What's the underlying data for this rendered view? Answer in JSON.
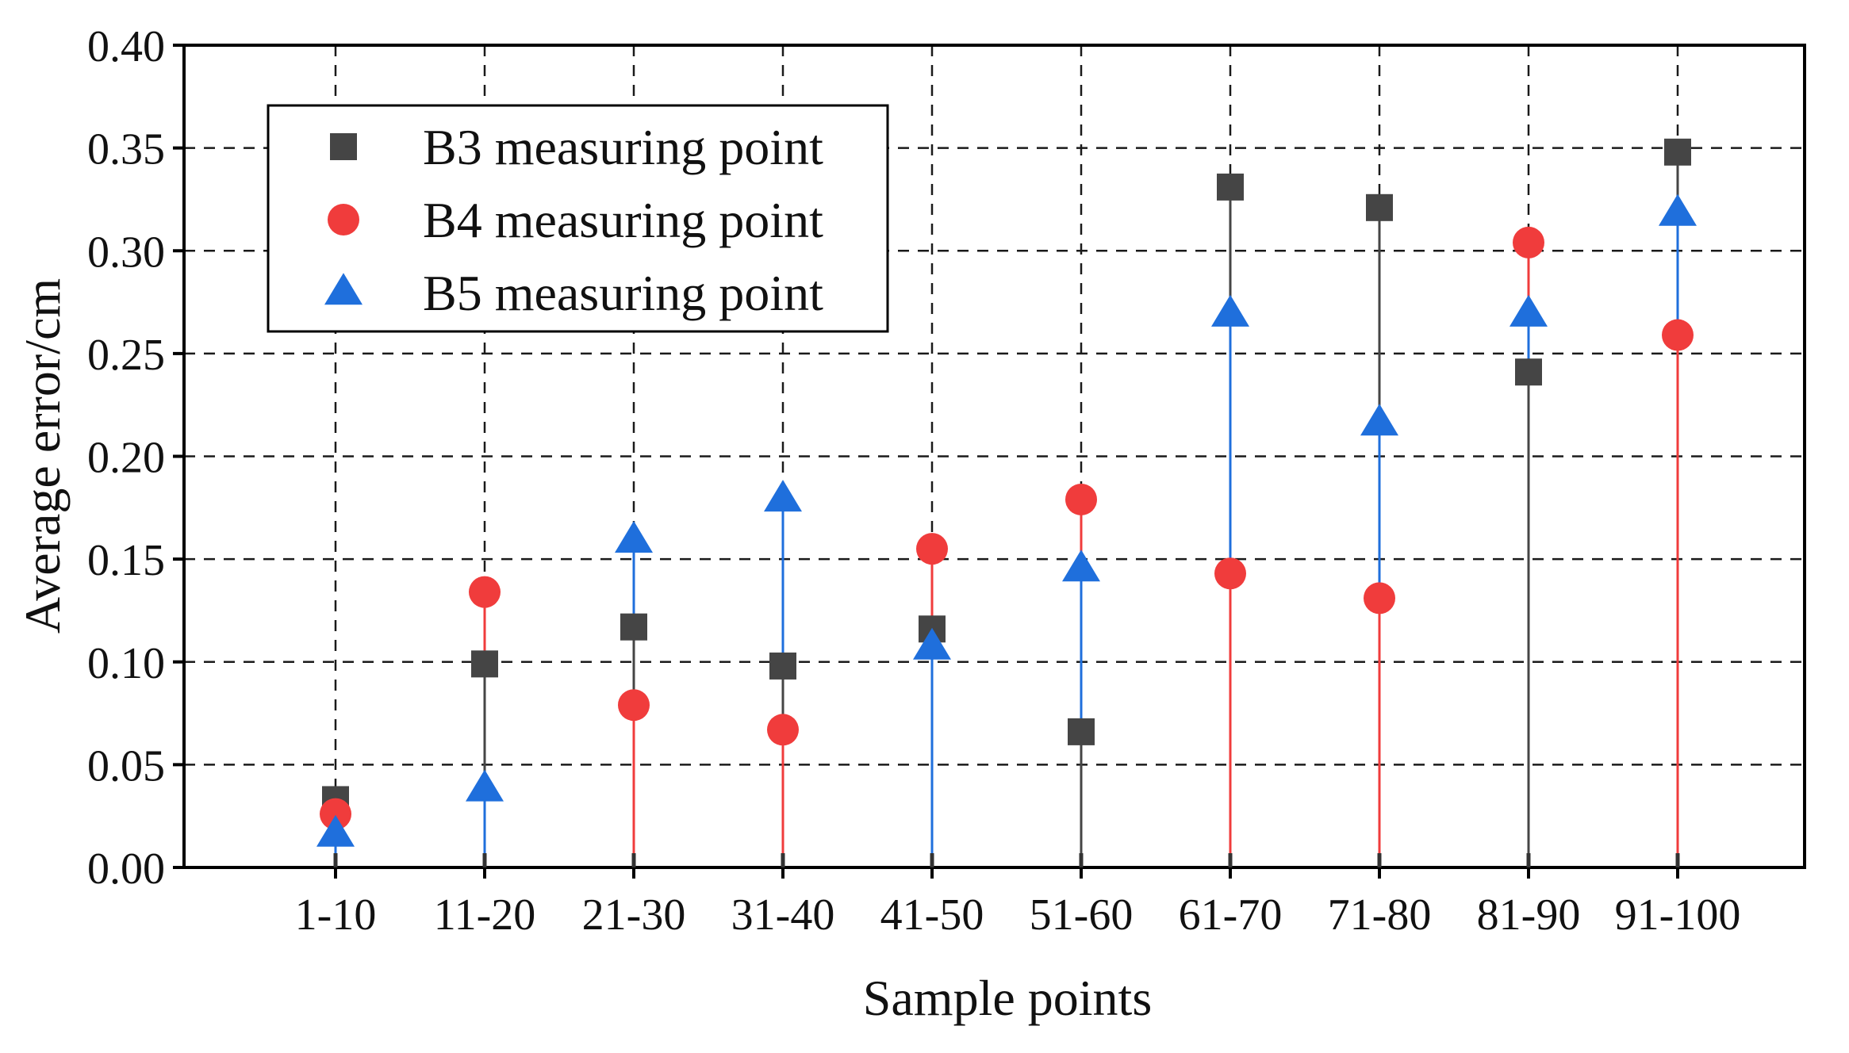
{
  "chart_data": {
    "type": "scatter",
    "title": "",
    "xlabel": "Sample points",
    "ylabel": "Average error/cm",
    "categories": [
      "1-10",
      "11-20",
      "21-30",
      "31-40",
      "41-50",
      "51-60",
      "61-70",
      "71-80",
      "81-90",
      "91-100"
    ],
    "ylim": [
      0,
      0.4
    ],
    "yticks": [
      "0.00",
      "0.05",
      "0.10",
      "0.15",
      "0.20",
      "0.25",
      "0.30",
      "0.35",
      "0.40"
    ],
    "grid": true,
    "legend_position": "top-left",
    "series": [
      {
        "name": "B3 measuring point",
        "marker": "square",
        "color": "#454545",
        "values": [
          0.033,
          0.099,
          0.117,
          0.098,
          0.116,
          0.066,
          0.331,
          0.321,
          0.241,
          0.348
        ]
      },
      {
        "name": "B4 measuring point",
        "marker": "circle",
        "color": "#f03c3c",
        "values": [
          0.026,
          0.134,
          0.079,
          0.067,
          0.155,
          0.179,
          0.143,
          0.131,
          0.304,
          0.259
        ]
      },
      {
        "name": "B5 measuring point",
        "marker": "triangle",
        "color": "#1f6fdc",
        "values": [
          0.016,
          0.038,
          0.159,
          0.179,
          0.107,
          0.145,
          0.269,
          0.216,
          0.269,
          0.318
        ]
      }
    ]
  }
}
